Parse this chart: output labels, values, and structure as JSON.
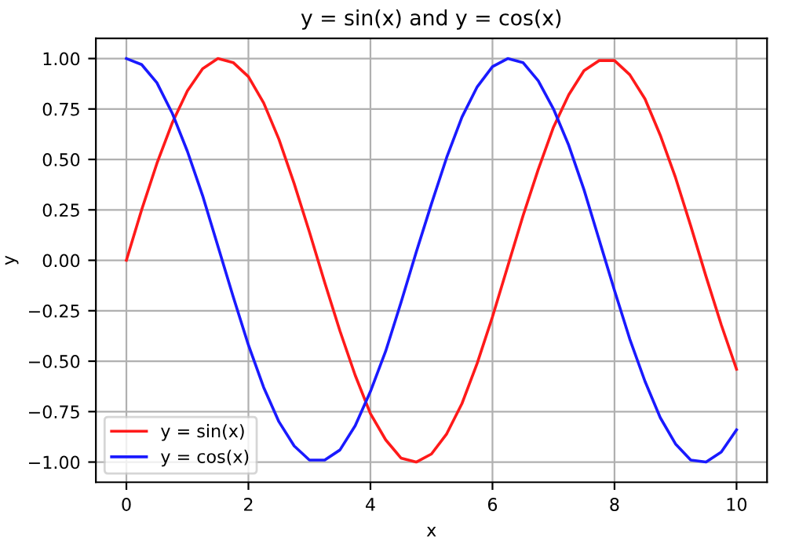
{
  "chart_data": {
    "type": "line",
    "title": "y = sin(x) and y = cos(x)",
    "xlabel": "x",
    "ylabel": "y",
    "x": [
      0,
      0.25,
      0.5,
      0.75,
      1,
      1.25,
      1.5,
      1.75,
      2,
      2.25,
      2.5,
      2.75,
      3,
      3.25,
      3.5,
      3.75,
      4,
      4.25,
      4.5,
      4.75,
      5,
      5.25,
      5.5,
      5.75,
      6,
      6.25,
      6.5,
      6.75,
      7,
      7.25,
      7.5,
      7.75,
      8,
      8.25,
      8.5,
      8.75,
      9,
      9.25,
      9.5,
      9.75,
      10
    ],
    "series": [
      {
        "name": "y = sin(x)",
        "color": "#ff1a1a",
        "values": [
          0,
          0.25,
          0.48,
          0.68,
          0.84,
          0.95,
          1.0,
          0.98,
          0.91,
          0.78,
          0.6,
          0.38,
          0.14,
          -0.11,
          -0.35,
          -0.57,
          -0.76,
          -0.89,
          -0.98,
          -1.0,
          -0.96,
          -0.86,
          -0.71,
          -0.51,
          -0.28,
          -0.03,
          0.22,
          0.45,
          0.66,
          0.82,
          0.94,
          0.99,
          0.99,
          0.92,
          0.8,
          0.62,
          0.41,
          0.17,
          -0.08,
          -0.32,
          -0.54
        ]
      },
      {
        "name": "y = cos(x)",
        "color": "#1a1aff",
        "values": [
          1,
          0.97,
          0.88,
          0.73,
          0.54,
          0.32,
          0.07,
          -0.18,
          -0.42,
          -0.63,
          -0.8,
          -0.92,
          -0.99,
          -0.99,
          -0.94,
          -0.82,
          -0.65,
          -0.45,
          -0.21,
          0.04,
          0.28,
          0.51,
          0.71,
          0.86,
          0.96,
          1.0,
          0.98,
          0.89,
          0.75,
          0.57,
          0.35,
          0.1,
          -0.15,
          -0.39,
          -0.6,
          -0.78,
          -0.91,
          -0.99,
          -1.0,
          -0.95,
          -0.84
        ]
      }
    ],
    "xlim": [
      -0.5,
      10.5
    ],
    "xticks": [
      0,
      2,
      4,
      6,
      8,
      10
    ],
    "ylim": [
      -1.1,
      1.1
    ],
    "yticks": [
      {
        "value": -1,
        "label": "−1.00"
      },
      {
        "value": -0.75,
        "label": "−0.75"
      },
      {
        "value": -0.5,
        "label": "−0.50"
      },
      {
        "value": -0.25,
        "label": "−0.25"
      },
      {
        "value": 0,
        "label": "0.00"
      },
      {
        "value": 0.25,
        "label": "0.25"
      },
      {
        "value": 0.5,
        "label": "0.50"
      },
      {
        "value": 0.75,
        "label": "0.75"
      },
      {
        "value": 1,
        "label": "1.00"
      }
    ],
    "grid": true,
    "legend": "bottom left",
    "line_style": "solid"
  }
}
